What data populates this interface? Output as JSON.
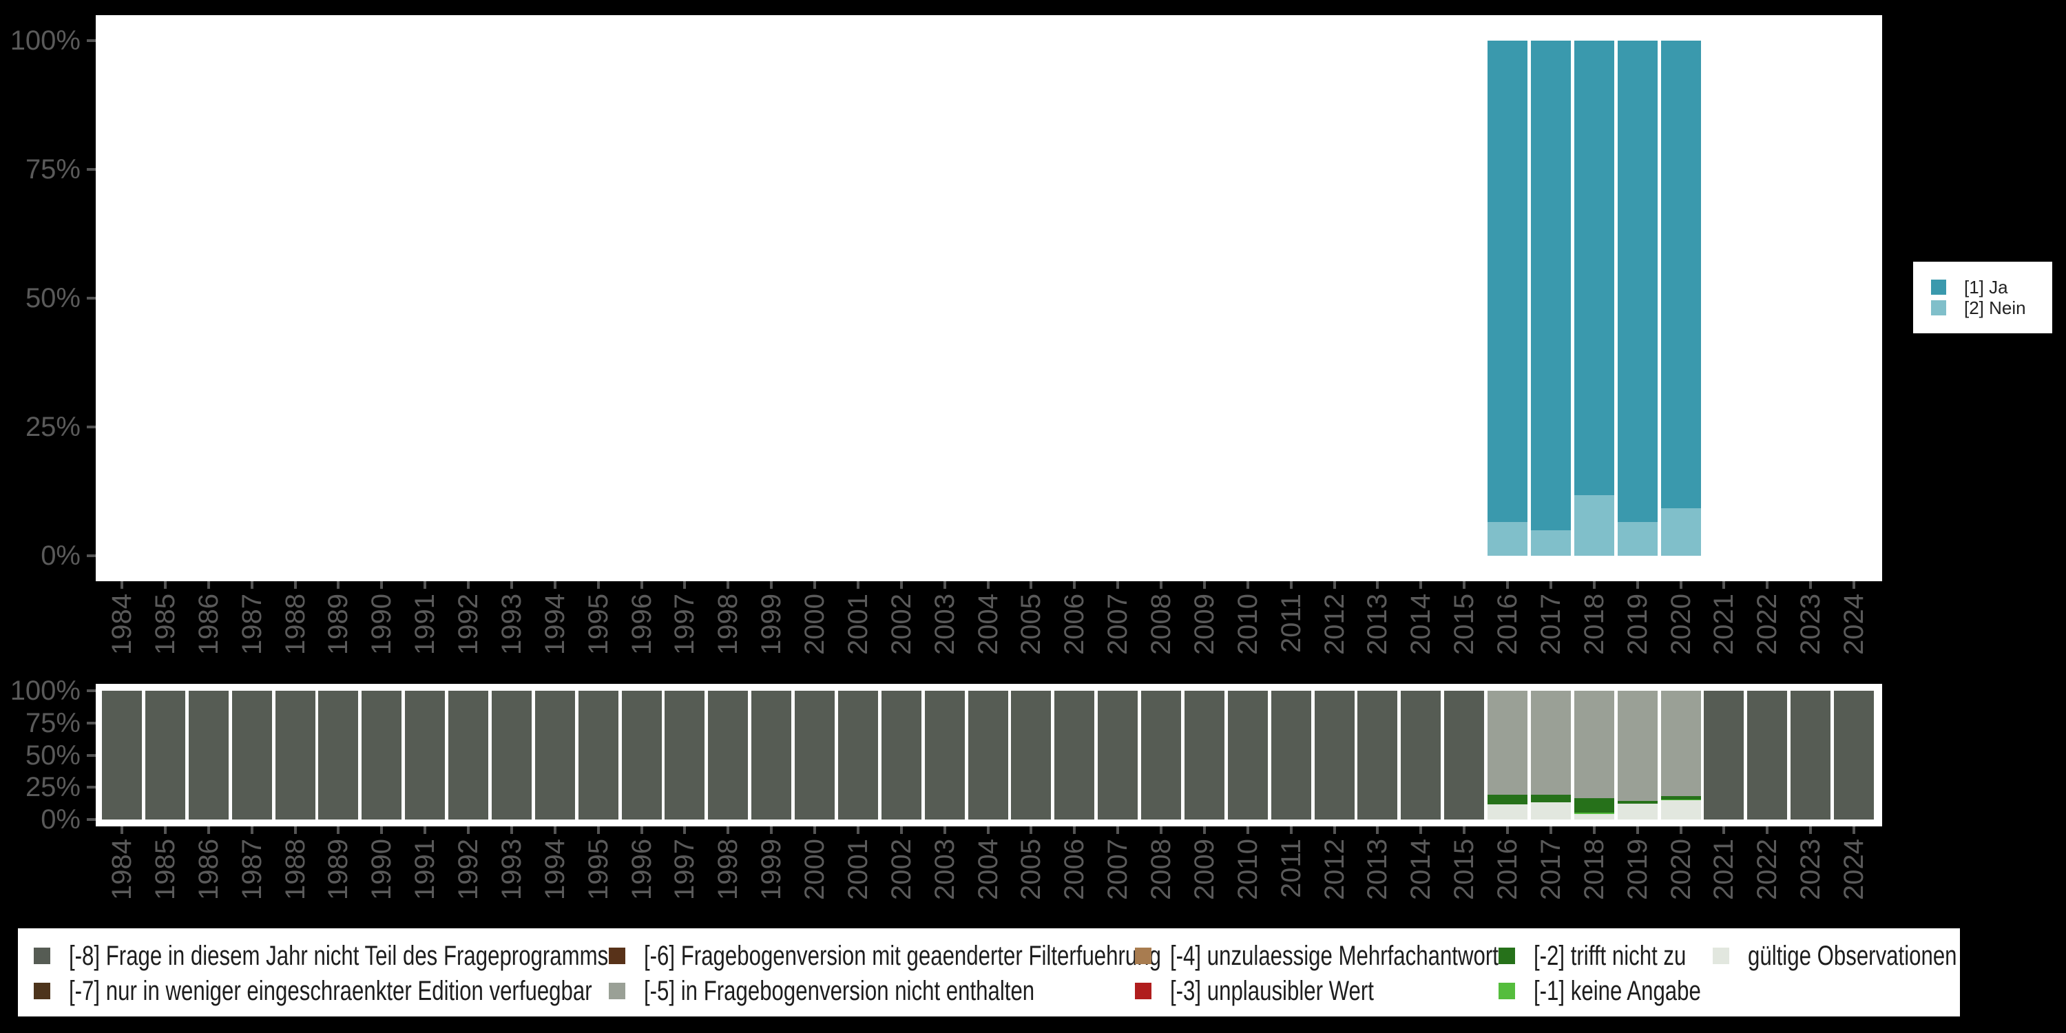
{
  "colors": {
    "background": "#000000",
    "plot_background": "#ffffff",
    "axis_text": "#5a5a5a",
    "tick": "#555555",
    "legend_text": "#1d1d1d"
  },
  "top_legend": {
    "items": [
      {
        "label": "[1] Ja",
        "color": "#3a99ad"
      },
      {
        "label": "[2] Nein",
        "color": "#80bfca"
      }
    ]
  },
  "bottom_legend": {
    "columns": [
      {
        "items": [
          {
            "code": "-8",
            "label": "[-8] Frage in diesem Jahr nicht Teil des Frageprogramms",
            "color": "#565c54"
          },
          {
            "code": "-7",
            "label": "[-7] nur in weniger eingeschraenkter Edition verfuegbar",
            "color": "#4d341c"
          }
        ]
      },
      {
        "items": [
          {
            "code": "-6",
            "label": "[-6] Fragebogenversion mit geaenderter Filterfuehrung",
            "color": "#583219"
          },
          {
            "code": "-5",
            "label": "[-5] in Fragebogenversion nicht enthalten",
            "color": "#9aa096"
          }
        ]
      },
      {
        "items": [
          {
            "code": "-4",
            "label": "[-4] unzulaessige Mehrfachantwort",
            "color": "#a87c50"
          },
          {
            "code": "-3",
            "label": "[-3] unplausibler Wert",
            "color": "#b01d1d"
          }
        ]
      },
      {
        "items": [
          {
            "code": "-2",
            "label": "[-2] trifft nicht zu",
            "color": "#26711a"
          },
          {
            "code": "-1",
            "label": "[-1] keine Angabe",
            "color": "#55bd3d"
          }
        ]
      },
      {
        "items": [
          {
            "code": "valid",
            "label": "gültige Observationen",
            "color": "#e2e7df"
          }
        ]
      }
    ]
  },
  "chart_data": [
    {
      "id": "values",
      "type": "bar",
      "stacked": true,
      "grid": false,
      "legend_position": "right",
      "ylim": [
        0,
        100
      ],
      "y_ticks": [
        "100%",
        "75%",
        "50%",
        "25%",
        "0%"
      ],
      "categories": [
        "1984",
        "1985",
        "1986",
        "1987",
        "1988",
        "1989",
        "1990",
        "1991",
        "1992",
        "1993",
        "1994",
        "1995",
        "1996",
        "1997",
        "1998",
        "1999",
        "2000",
        "2001",
        "2002",
        "2003",
        "2004",
        "2005",
        "2006",
        "2007",
        "2008",
        "2009",
        "2010",
        "2011",
        "2012",
        "2013",
        "2014",
        "2015",
        "2016",
        "2017",
        "2018",
        "2019",
        "2020",
        "2021",
        "2022",
        "2023",
        "2024"
      ],
      "series": [
        {
          "name": "[1] Ja",
          "color": "#3a99ad",
          "values": {
            "2016": 93.5,
            "2017": 95.0,
            "2018": 88.3,
            "2019": 93.5,
            "2020": 90.8
          }
        },
        {
          "name": "[2] Nein",
          "color": "#80bfca",
          "values": {
            "2016": 6.5,
            "2017": 5.0,
            "2018": 11.7,
            "2019": 6.5,
            "2020": 9.2
          }
        }
      ]
    },
    {
      "id": "missings",
      "type": "bar",
      "stacked": true,
      "grid": false,
      "legend_position": "bottom",
      "ylim": [
        0,
        100
      ],
      "y_ticks": [
        "100%",
        "75%",
        "50%",
        "25%",
        "0%"
      ],
      "categories": [
        "1984",
        "1985",
        "1986",
        "1987",
        "1988",
        "1989",
        "1990",
        "1991",
        "1992",
        "1993",
        "1994",
        "1995",
        "1996",
        "1997",
        "1998",
        "1999",
        "2000",
        "2001",
        "2002",
        "2003",
        "2004",
        "2005",
        "2006",
        "2007",
        "2008",
        "2009",
        "2010",
        "2011",
        "2012",
        "2013",
        "2014",
        "2015",
        "2016",
        "2017",
        "2018",
        "2019",
        "2020",
        "2021",
        "2022",
        "2023",
        "2024"
      ],
      "series": [
        {
          "name": "[-8] Frage in diesem Jahr nicht Teil des Frageprogramms",
          "color": "#565c54",
          "values": {
            "1984": 100,
            "1985": 100,
            "1986": 100,
            "1987": 100,
            "1988": 100,
            "1989": 100,
            "1990": 100,
            "1991": 100,
            "1992": 100,
            "1993": 100,
            "1994": 100,
            "1995": 100,
            "1996": 100,
            "1997": 100,
            "1998": 100,
            "1999": 100,
            "2000": 100,
            "2001": 100,
            "2002": 100,
            "2003": 100,
            "2004": 100,
            "2005": 100,
            "2006": 100,
            "2007": 100,
            "2008": 100,
            "2009": 100,
            "2010": 100,
            "2011": 100,
            "2012": 100,
            "2013": 100,
            "2014": 100,
            "2015": 100,
            "2021": 100,
            "2022": 100,
            "2023": 100,
            "2024": 100
          }
        },
        {
          "name": "[-5] in Fragebogenversion nicht enthalten",
          "color": "#9aa096",
          "values": {
            "2016": 80.7,
            "2017": 80.7,
            "2018": 83.4,
            "2019": 85.6,
            "2020": 81.8
          }
        },
        {
          "name": "[-2] trifft nicht zu",
          "color": "#26711a",
          "values": {
            "2016": 7.5,
            "2017": 5.9,
            "2018": 11.2,
            "2019": 2.1,
            "2020": 2.7
          }
        },
        {
          "name": "[-1] keine Angabe",
          "color": "#55bd3d",
          "values": {
            "2018": 1.2,
            "2020": 0.5
          }
        },
        {
          "name": "gültige Observationen",
          "color": "#e2e7df",
          "values": {
            "2016": 11.8,
            "2017": 13.4,
            "2018": 4.2,
            "2019": 12.3,
            "2020": 15.0
          }
        }
      ]
    }
  ]
}
